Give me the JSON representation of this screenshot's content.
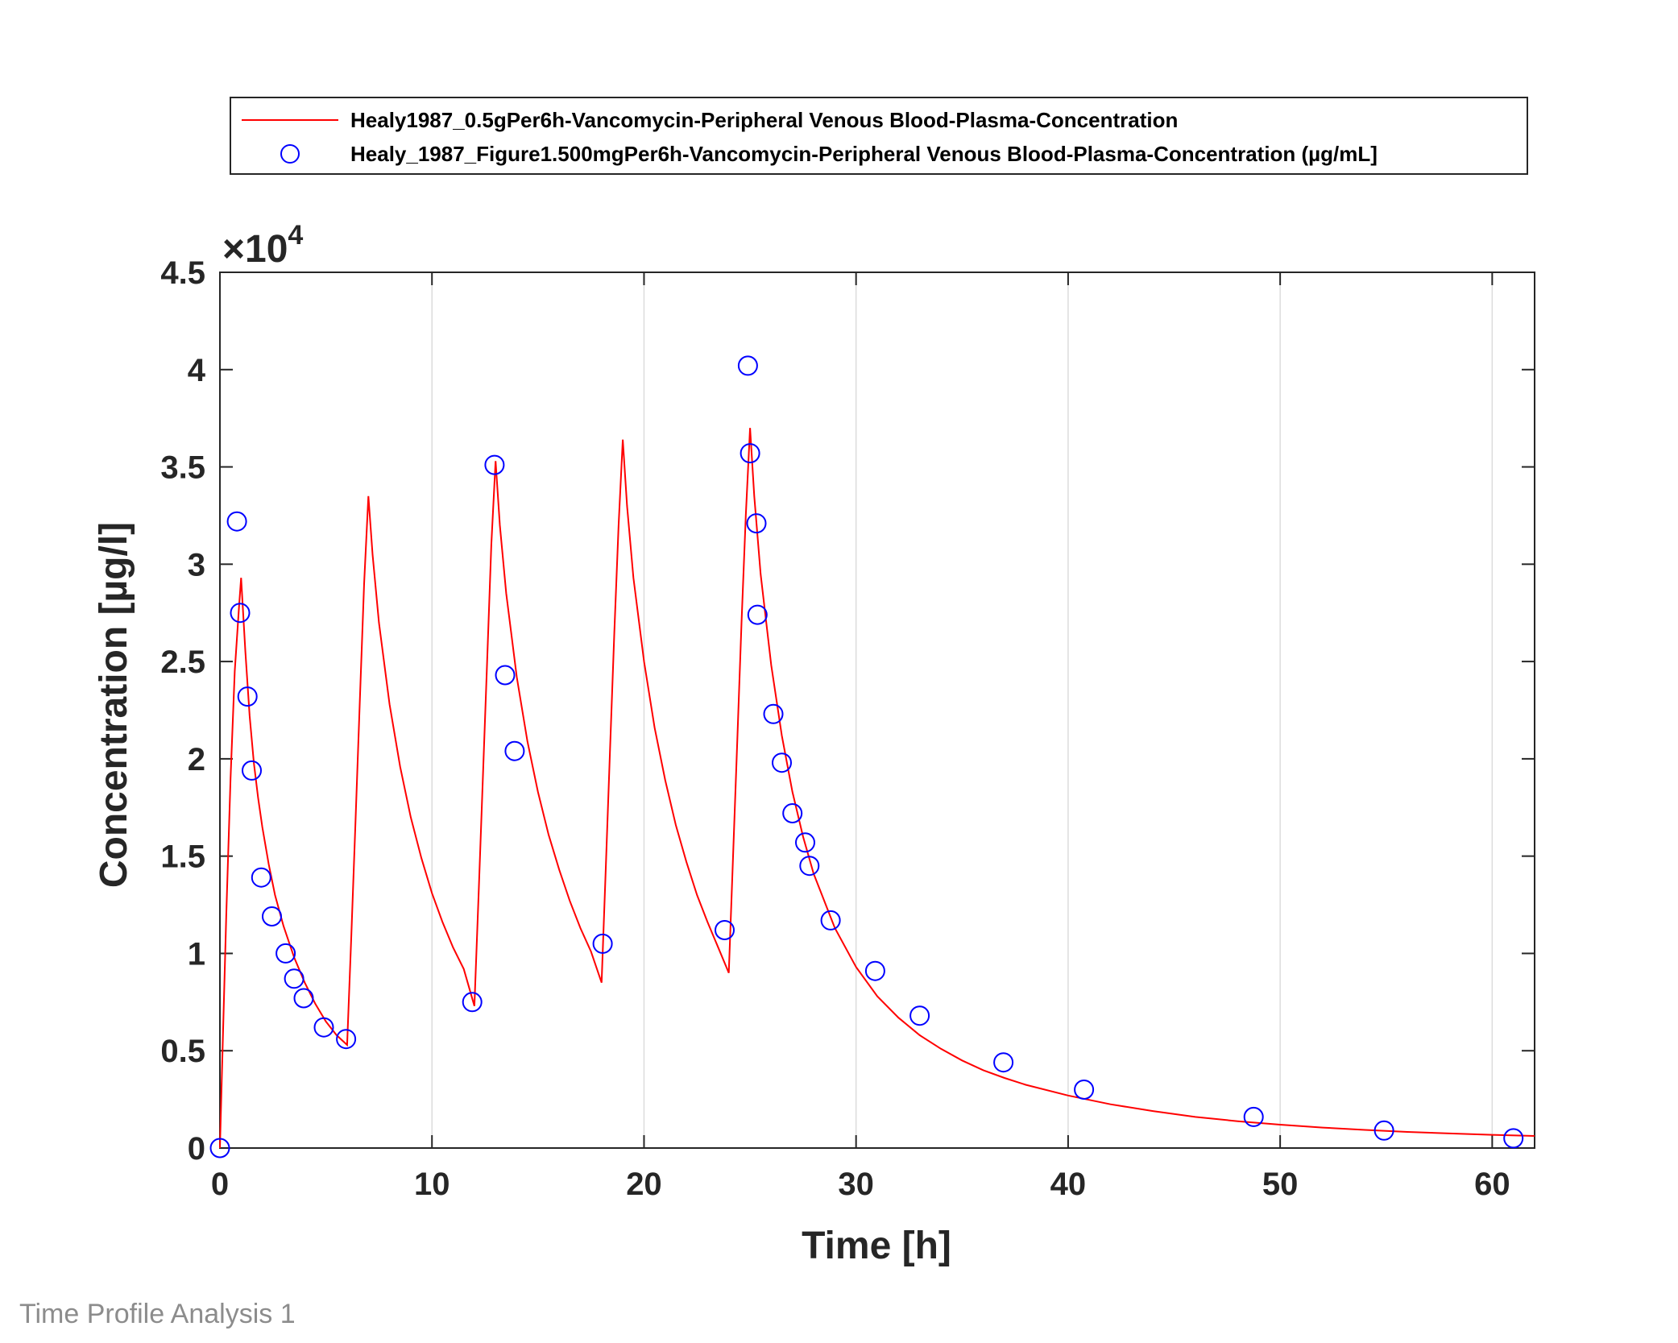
{
  "footer_text": "Time Profile Analysis 1",
  "chart_data": {
    "type": "line",
    "xlabel": "Time [h]",
    "ylabel": "Concentration [µg/l]",
    "y_exponent_label": "×10",
    "y_exponent": "4",
    "xlim": [
      0,
      62
    ],
    "ylim": [
      0,
      45000
    ],
    "x_ticks": [
      0,
      10,
      20,
      30,
      40,
      50,
      60
    ],
    "y_ticks": [
      0,
      5000,
      10000,
      15000,
      20000,
      25000,
      30000,
      35000,
      40000,
      45000
    ],
    "y_tick_labels": [
      "0",
      "0.5",
      "1",
      "1.5",
      "2",
      "2.5",
      "3",
      "3.5",
      "4",
      "4.5"
    ],
    "grid": "vertical",
    "legend_position": "top-outside",
    "colors": {
      "simulation": "#ff0000",
      "observed": "#0000ff",
      "axis": "#262626",
      "grid": "#dcdcdc"
    },
    "series": [
      {
        "name": "Healy1987_0.5gPer6h-Vancomycin-Peripheral Venous Blood-Plasma-Concentration",
        "kind": "line",
        "x": [
          0,
          0.15,
          0.3,
          0.5,
          0.7,
          0.9,
          1.0,
          1.2,
          1.4,
          1.6,
          1.8,
          2.0,
          2.3,
          2.6,
          3.0,
          3.5,
          4.0,
          4.5,
          5.0,
          5.5,
          6.0,
          6.2,
          6.4,
          6.6,
          6.8,
          7.0,
          7.2,
          7.5,
          8.0,
          8.5,
          9.0,
          9.5,
          10.0,
          10.5,
          11.0,
          11.5,
          12.0,
          12.2,
          12.4,
          12.6,
          12.8,
          13.0,
          13.2,
          13.5,
          14.0,
          14.5,
          15.0,
          15.5,
          16.0,
          16.5,
          17.0,
          17.5,
          18.0,
          18.2,
          18.4,
          18.6,
          18.8,
          19.0,
          19.2,
          19.5,
          20.0,
          20.5,
          21.0,
          21.5,
          22.0,
          22.5,
          23.0,
          23.5,
          24.0,
          24.2,
          24.4,
          24.6,
          24.8,
          25.0,
          25.2,
          25.5,
          26.0,
          26.5,
          27.0,
          27.5,
          28.0,
          29.0,
          30.0,
          31.0,
          32.0,
          33.0,
          34.0,
          35.0,
          36.0,
          37.0,
          38.0,
          40.0,
          42.0,
          44.0,
          46.0,
          48.0,
          50.0,
          52.0,
          54.0,
          56.0,
          58.0,
          60.0,
          62.0
        ],
        "y": [
          0,
          6000,
          12000,
          19000,
          24500,
          27800,
          29300,
          25500,
          22200,
          19800,
          18000,
          16500,
          14600,
          13000,
          11400,
          9800,
          8500,
          7400,
          6500,
          5800,
          5300,
          11000,
          17000,
          23000,
          29000,
          33500,
          30500,
          27000,
          22800,
          19600,
          17000,
          14900,
          13100,
          11600,
          10300,
          9200,
          7300,
          13000,
          19000,
          25000,
          31000,
          35300,
          32000,
          28500,
          24200,
          20900,
          18300,
          16100,
          14300,
          12700,
          11300,
          10100,
          8500,
          14500,
          20500,
          26500,
          32000,
          36400,
          33000,
          29300,
          25000,
          21600,
          18900,
          16600,
          14700,
          13000,
          11600,
          10300,
          9000,
          15000,
          21000,
          27000,
          32500,
          37000,
          33500,
          29500,
          24800,
          21200,
          18300,
          16000,
          14100,
          11300,
          9300,
          7800,
          6700,
          5800,
          5100,
          4500,
          4000,
          3600,
          3250,
          2700,
          2250,
          1900,
          1600,
          1380,
          1200,
          1050,
          930,
          830,
          750,
          680,
          620
        ]
      },
      {
        "name": "Healy_1987_Figure1.500mgPer6h-Vancomycin-Peripheral Venous Blood-Plasma-Concentration (µg/mL]",
        "kind": "scatter",
        "x": [
          0,
          0.8,
          0.95,
          1.3,
          1.5,
          1.95,
          2.45,
          3.1,
          3.5,
          3.95,
          4.9,
          5.95,
          11.9,
          12.95,
          13.45,
          13.9,
          18.05,
          23.8,
          24.9,
          25.0,
          25.3,
          25.35,
          26.1,
          26.5,
          27.0,
          27.6,
          27.8,
          28.8,
          30.9,
          33.0,
          36.95,
          40.75,
          48.75,
          54.9,
          61.0
        ],
        "y": [
          0,
          32200,
          27500,
          23200,
          19400,
          13900,
          11900,
          10000,
          8700,
          7700,
          6200,
          5600,
          7500,
          35100,
          24300,
          20400,
          10500,
          11200,
          40200,
          35700,
          32100,
          27400,
          22300,
          19800,
          17200,
          15700,
          14500,
          11700,
          9100,
          6800,
          4400,
          3000,
          1600,
          900,
          500
        ]
      }
    ]
  }
}
